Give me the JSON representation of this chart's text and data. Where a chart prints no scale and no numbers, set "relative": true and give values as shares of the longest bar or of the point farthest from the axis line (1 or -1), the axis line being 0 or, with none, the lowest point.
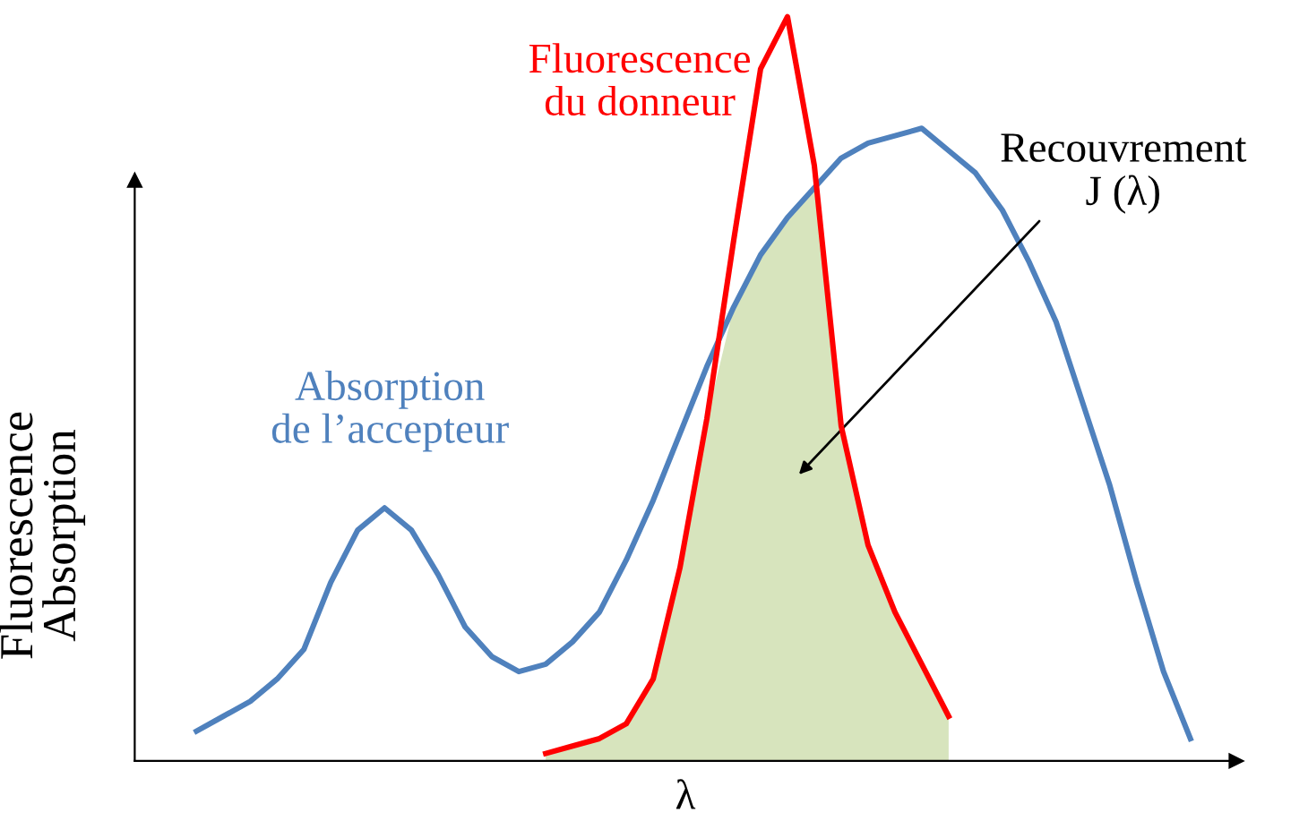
{
  "chart_data": {
    "type": "line",
    "relative": true,
    "xlabel": "λ",
    "ylabel": "Fluorescence\nAbsorption",
    "categories": [
      null,
      null,
      null,
      null,
      null,
      null,
      null,
      null,
      null,
      null,
      null,
      null,
      null,
      null,
      null,
      null,
      null,
      null,
      null,
      null,
      null,
      null,
      null,
      null,
      null,
      null,
      null,
      null,
      null,
      null,
      null,
      null,
      null,
      null,
      null,
      null,
      null,
      null,
      null
    ],
    "series": [
      {
        "color": "#4f81bd",
        "values": [
          0.04,
          0.06,
          0.08,
          0.11,
          0.15,
          0.24,
          0.31,
          0.34,
          0.31,
          0.25,
          0.18,
          0.14,
          0.12,
          0.13,
          0.16,
          0.2,
          0.27,
          0.35,
          0.44,
          0.53,
          0.61,
          0.68,
          0.73,
          0.77,
          0.81,
          0.83,
          0.84,
          0.85,
          0.82,
          0.79,
          0.74,
          0.67,
          0.59,
          0.48,
          0.37,
          0.24,
          0.12,
          0.03,
          null
        ]
      },
      {
        "color": "#ff0000",
        "values": [
          null,
          null,
          null,
          null,
          null,
          null,
          null,
          null,
          null,
          null,
          null,
          null,
          null,
          0.01,
          0.02,
          0.03,
          0.05,
          0.11,
          0.26,
          0.46,
          0.7,
          0.93,
          1.0,
          0.8,
          0.45,
          0.29,
          0.2,
          0.13,
          0.06,
          null,
          null,
          null,
          null,
          null,
          null,
          null,
          null,
          null,
          null
        ]
      },
      {
        "type": "area",
        "color": "#d7e4bd",
        "values": [
          null,
          null,
          null,
          null,
          null,
          null,
          null,
          null,
          null,
          null,
          null,
          null,
          null,
          0.01,
          0.02,
          0.03,
          0.05,
          0.11,
          0.26,
          0.46,
          0.61,
          0.68,
          0.73,
          0.77,
          0.45,
          0.29,
          0.2,
          0.13,
          0.06,
          null,
          null,
          null,
          null,
          null,
          null,
          null,
          null,
          null,
          null
        ]
      }
    ],
    "annotations": [
      "Absorption\nde l’accepteur",
      "Fluorescence\ndu donneur",
      "Recouvrement\nJ (λ)"
    ]
  }
}
